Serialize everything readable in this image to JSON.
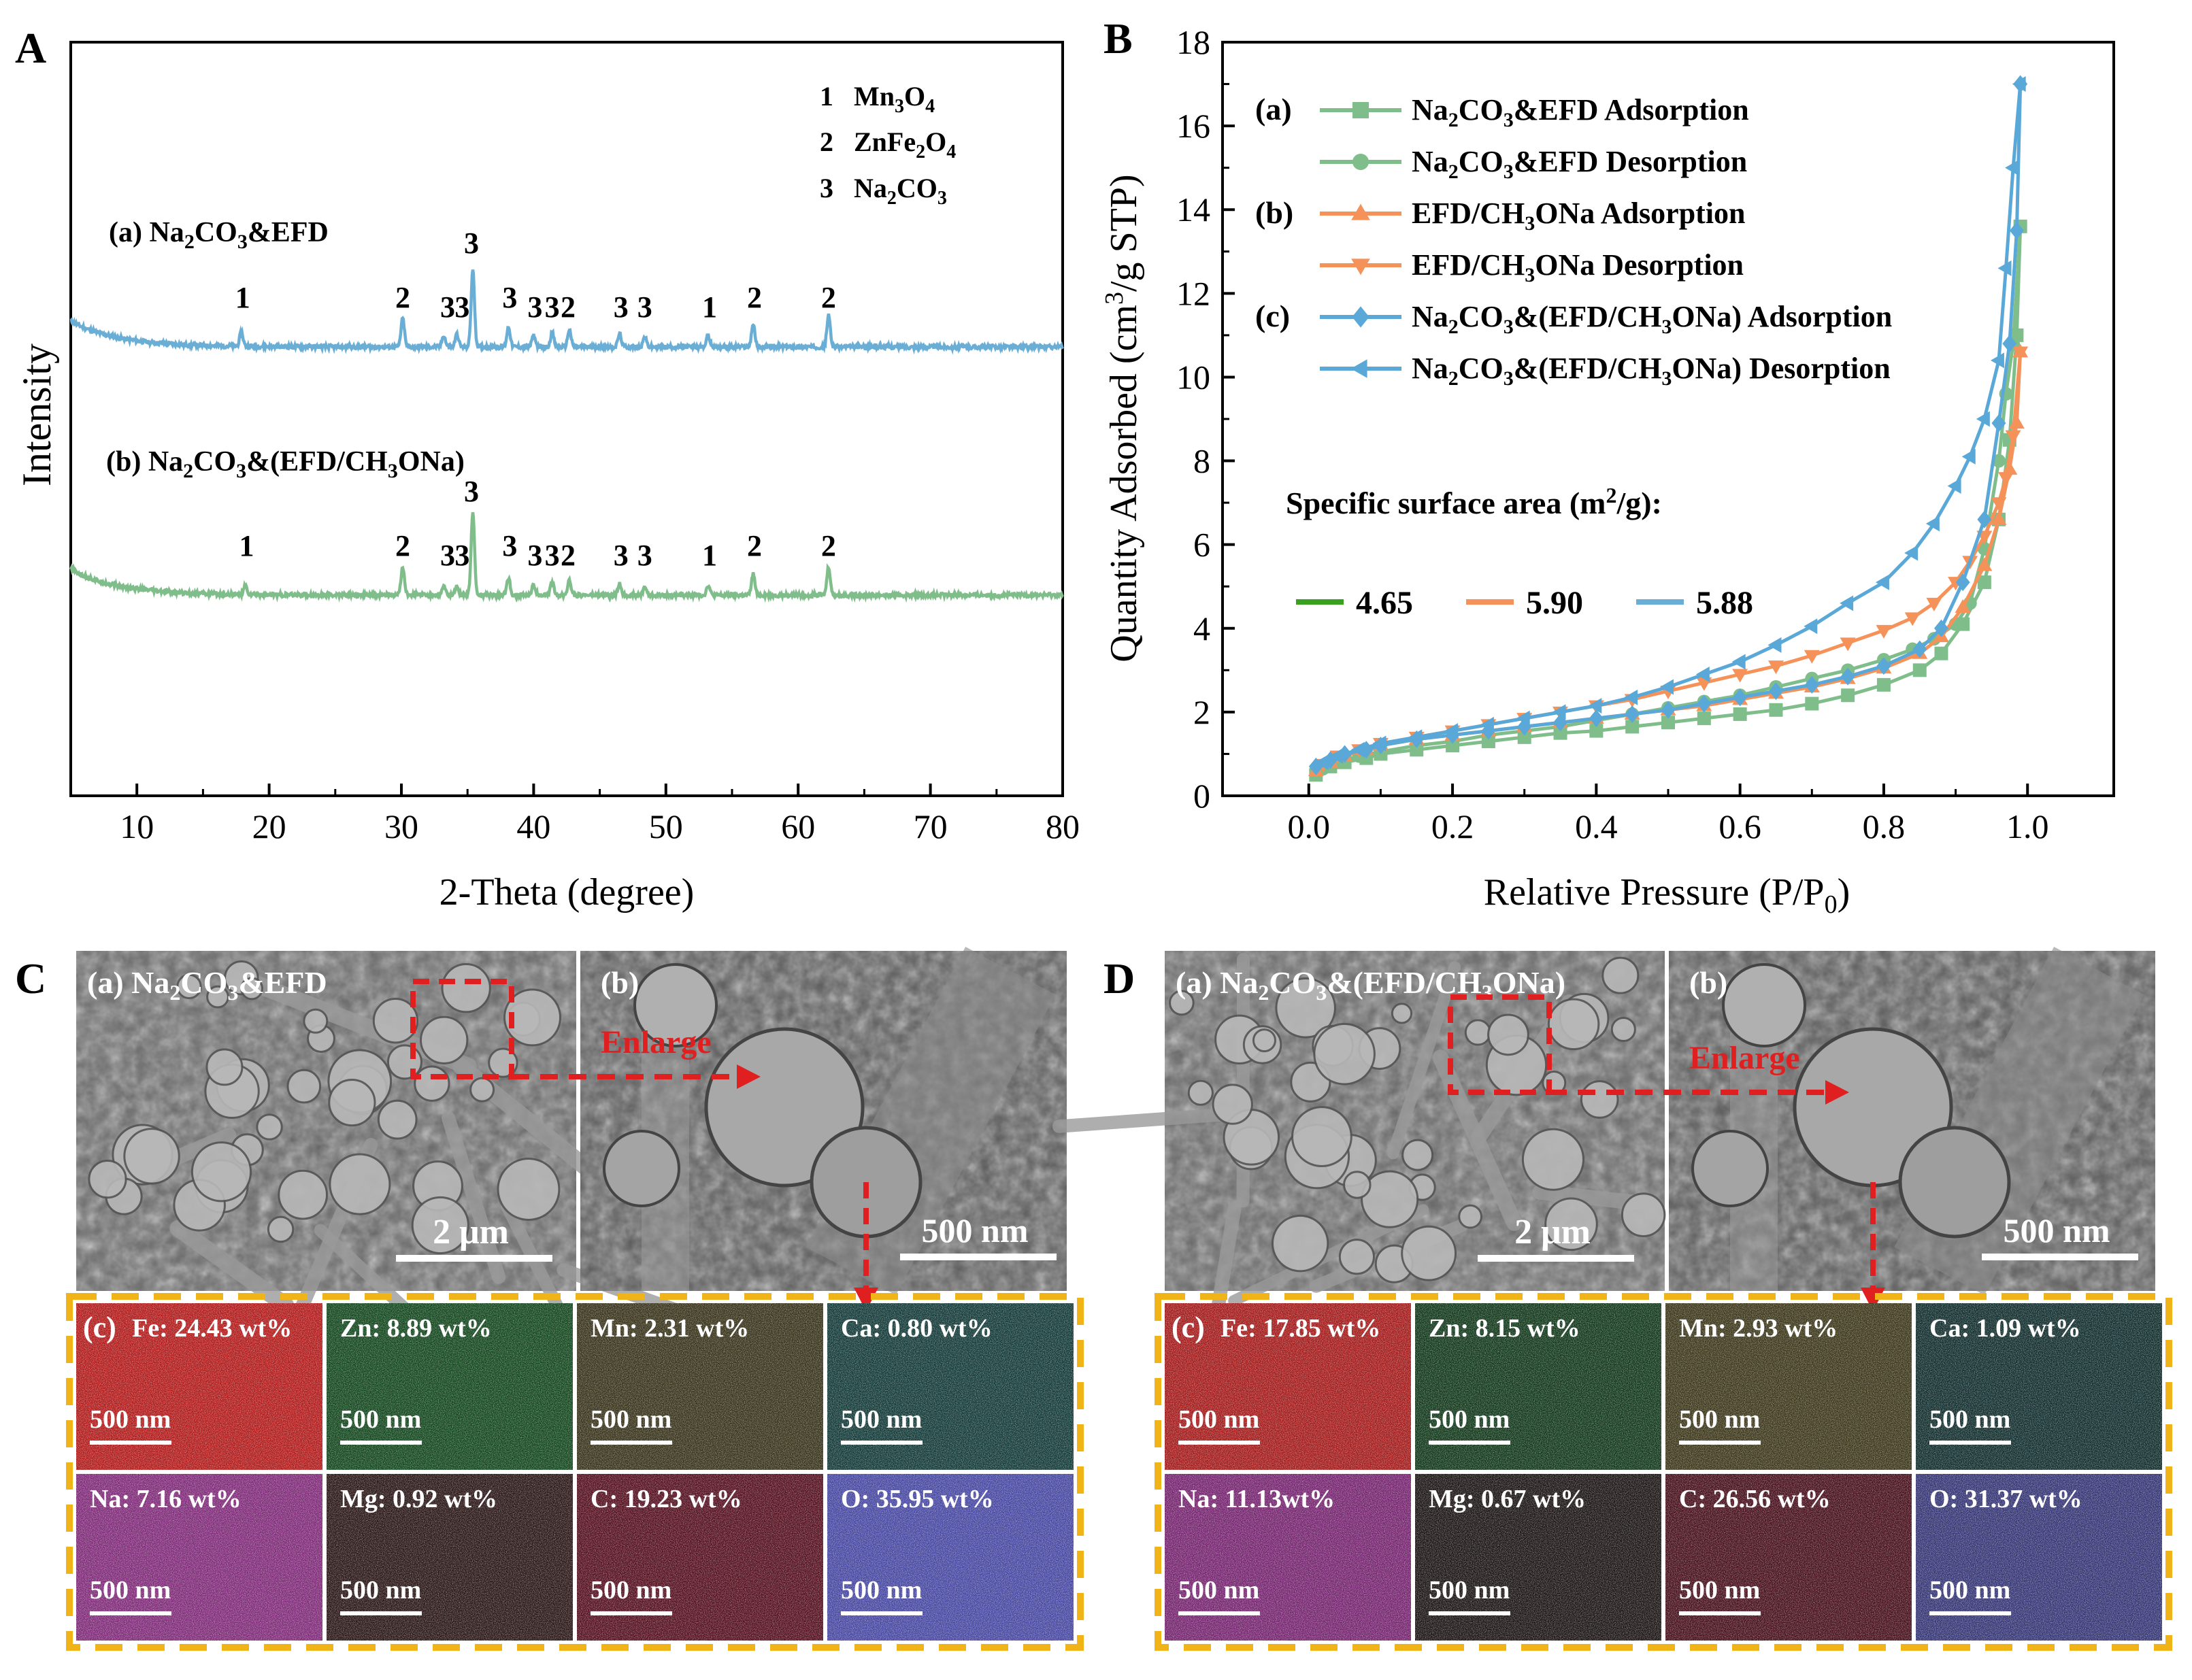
{
  "panel_labels": {
    "A": "A",
    "B": "B",
    "C": "C",
    "D": "D"
  },
  "chart_data": [
    {
      "id": "A",
      "type": "line",
      "title": "",
      "xlabel": "2-Theta (degree)",
      "ylabel": "Intensity",
      "xlim": [
        5,
        80
      ],
      "xticks": [
        10,
        20,
        30,
        40,
        50,
        60,
        70,
        80
      ],
      "legend": [
        {
          "num": "1",
          "base": "Mn",
          "sub1": "3",
          "mid": "O",
          "sub2": "4"
        },
        {
          "num": "2",
          "base": "ZnFe",
          "sub1": "2",
          "mid": "O",
          "sub2": "4"
        },
        {
          "num": "3",
          "base": "Na",
          "sub1": "2",
          "mid": "CO",
          "sub2": "3"
        }
      ],
      "series": [
        {
          "name": "(a) Na2CO3&EFD",
          "label_pre": "(a) Na",
          "label_sub": "2",
          "label_mid": "CO",
          "label_sub2": "3",
          "label_post": "&EFD",
          "color": "#6aaed6",
          "baseline": 0.0,
          "peaks": [
            [
              17.9,
              0.5
            ],
            [
              30.1,
              1.0
            ],
            [
              33.2,
              0.4
            ],
            [
              34.2,
              0.45
            ],
            [
              35.4,
              2.7
            ],
            [
              38.1,
              0.7
            ],
            [
              40.0,
              0.4
            ],
            [
              41.4,
              0.5
            ],
            [
              42.7,
              0.6
            ],
            [
              46.5,
              0.45
            ],
            [
              48.4,
              0.35
            ],
            [
              53.2,
              0.4
            ],
            [
              56.6,
              0.8
            ],
            [
              62.3,
              1.1
            ]
          ],
          "peak_labels": [
            {
              "x": 18.0,
              "text": "1",
              "row": "low"
            },
            {
              "x": 30.1,
              "text": "2",
              "row": "low"
            },
            {
              "x": 33.5,
              "text": "3",
              "row": "lowest"
            },
            {
              "x": 34.6,
              "text": "3",
              "row": "lowest"
            },
            {
              "x": 35.3,
              "text": "3",
              "row": "top"
            },
            {
              "x": 38.2,
              "text": "3",
              "row": "low"
            },
            {
              "x": 40.1,
              "text": "3",
              "row": "lowest"
            },
            {
              "x": 41.4,
              "text": "3",
              "row": "lowest"
            },
            {
              "x": 42.6,
              "text": "2",
              "row": "lowest"
            },
            {
              "x": 46.6,
              "text": "3",
              "row": "lowest"
            },
            {
              "x": 48.4,
              "text": "3",
              "row": "lowest"
            },
            {
              "x": 53.3,
              "text": "1",
              "row": "lowest"
            },
            {
              "x": 56.7,
              "text": "2",
              "row": "low"
            },
            {
              "x": 62.3,
              "text": "2",
              "row": "low"
            }
          ]
        },
        {
          "name": "(b) Na2CO3&(EFD/CH3ONa)",
          "label_pre": "(b) Na",
          "label_sub": "2",
          "label_mid": "CO",
          "label_sub2": "3",
          "label_post": "&(EFD/CH",
          "label_sub3": "3",
          "label_post2": "ONa)",
          "color": "#7fbe8a",
          "baseline": 0.0,
          "peaks": [
            [
              18.2,
              0.3
            ],
            [
              30.1,
              1.0
            ],
            [
              33.2,
              0.3
            ],
            [
              34.2,
              0.35
            ],
            [
              35.4,
              2.9
            ],
            [
              38.1,
              0.6
            ],
            [
              40.0,
              0.35
            ],
            [
              41.4,
              0.45
            ],
            [
              42.7,
              0.55
            ],
            [
              46.5,
              0.4
            ],
            [
              48.4,
              0.3
            ],
            [
              53.2,
              0.35
            ],
            [
              56.6,
              0.75
            ],
            [
              62.3,
              1.0
            ]
          ],
          "peak_labels": [
            {
              "x": 18.3,
              "text": "1",
              "row": "low"
            },
            {
              "x": 30.1,
              "text": "2",
              "row": "low"
            },
            {
              "x": 33.5,
              "text": "3",
              "row": "lowest"
            },
            {
              "x": 34.6,
              "text": "3",
              "row": "lowest"
            },
            {
              "x": 35.3,
              "text": "3",
              "row": "top"
            },
            {
              "x": 38.2,
              "text": "3",
              "row": "low"
            },
            {
              "x": 40.1,
              "text": "3",
              "row": "lowest"
            },
            {
              "x": 41.4,
              "text": "3",
              "row": "lowest"
            },
            {
              "x": 42.6,
              "text": "2",
              "row": "lowest"
            },
            {
              "x": 46.6,
              "text": "3",
              "row": "lowest"
            },
            {
              "x": 48.4,
              "text": "3",
              "row": "lowest"
            },
            {
              "x": 53.3,
              "text": "1",
              "row": "lowest"
            },
            {
              "x": 56.7,
              "text": "2",
              "row": "low"
            },
            {
              "x": 62.3,
              "text": "2",
              "row": "low"
            }
          ]
        }
      ]
    },
    {
      "id": "B",
      "type": "line",
      "title": "",
      "xlabel": "Relative Pressure (P/P0)",
      "ylabel": "Quantity Adsorbed (cm3/g STP)",
      "xlim": [
        -0.12,
        1.12
      ],
      "ylim": [
        0,
        18
      ],
      "xticks": [
        0.0,
        0.2,
        0.4,
        0.6,
        0.8,
        1.0
      ],
      "yticks": [
        0,
        2,
        4,
        6,
        8,
        10,
        12,
        14,
        16,
        18
      ],
      "series": [
        {
          "group": "(a)",
          "name": "Na2CO3&EFD Adsorption",
          "color": "#7fbe8a",
          "marker": "square",
          "x": [
            0.01,
            0.03,
            0.05,
            0.08,
            0.1,
            0.15,
            0.2,
            0.25,
            0.3,
            0.35,
            0.4,
            0.45,
            0.5,
            0.55,
            0.6,
            0.65,
            0.7,
            0.75,
            0.8,
            0.85,
            0.88,
            0.91,
            0.94,
            0.96,
            0.975,
            0.985,
            0.99
          ],
          "y": [
            0.5,
            0.7,
            0.8,
            0.9,
            1.0,
            1.1,
            1.2,
            1.3,
            1.4,
            1.5,
            1.55,
            1.65,
            1.75,
            1.85,
            1.95,
            2.05,
            2.2,
            2.4,
            2.65,
            3.0,
            3.4,
            4.1,
            5.1,
            6.6,
            8.5,
            11.0,
            13.6
          ]
        },
        {
          "group": "",
          "name": "Na2CO3&EFD Desorption",
          "color": "#7fbe8a",
          "marker": "circle",
          "x": [
            0.99,
            0.98,
            0.97,
            0.96,
            0.94,
            0.92,
            0.9,
            0.87,
            0.84,
            0.8,
            0.75,
            0.7,
            0.65,
            0.6,
            0.55,
            0.5,
            0.45,
            0.4,
            0.35,
            0.3,
            0.25,
            0.2,
            0.15,
            0.1,
            0.07,
            0.04,
            0.02
          ],
          "y": [
            13.6,
            10.8,
            9.6,
            8.0,
            5.9,
            4.6,
            4.1,
            3.75,
            3.5,
            3.25,
            3.0,
            2.8,
            2.6,
            2.4,
            2.25,
            2.1,
            1.95,
            1.8,
            1.65,
            1.55,
            1.45,
            1.3,
            1.2,
            1.05,
            0.95,
            0.8,
            0.65
          ]
        },
        {
          "group": "(b)",
          "name": "EFD/CH3ONa Adsorption",
          "color": "#f5925a",
          "marker": "triangle-up",
          "x": [
            0.01,
            0.03,
            0.05,
            0.08,
            0.1,
            0.15,
            0.2,
            0.25,
            0.3,
            0.35,
            0.4,
            0.45,
            0.5,
            0.55,
            0.6,
            0.65,
            0.7,
            0.75,
            0.8,
            0.85,
            0.88,
            0.91,
            0.94,
            0.96,
            0.975,
            0.985,
            0.99
          ],
          "y": [
            0.6,
            0.8,
            0.95,
            1.1,
            1.2,
            1.35,
            1.45,
            1.55,
            1.65,
            1.75,
            1.85,
            1.95,
            2.05,
            2.15,
            2.3,
            2.45,
            2.6,
            2.8,
            3.05,
            3.4,
            3.8,
            4.5,
            5.5,
            6.6,
            7.8,
            8.9,
            10.6
          ]
        },
        {
          "group": "",
          "name": "EFD/CH3ONa Desorption",
          "color": "#f5925a",
          "marker": "triangle-down",
          "x": [
            0.99,
            0.98,
            0.97,
            0.96,
            0.94,
            0.92,
            0.9,
            0.87,
            0.84,
            0.8,
            0.75,
            0.7,
            0.65,
            0.6,
            0.55,
            0.5,
            0.45,
            0.4,
            0.35,
            0.3,
            0.25,
            0.2,
            0.15,
            0.1,
            0.07,
            0.04,
            0.02
          ],
          "y": [
            10.6,
            8.6,
            7.6,
            7.0,
            6.2,
            5.6,
            5.1,
            4.6,
            4.25,
            3.95,
            3.65,
            3.35,
            3.1,
            2.9,
            2.7,
            2.5,
            2.3,
            2.15,
            2.0,
            1.85,
            1.7,
            1.55,
            1.4,
            1.25,
            1.1,
            0.95,
            0.75
          ]
        },
        {
          "group": "(c)",
          "name": "Na2CO3&(EFD/CH3ONa) Adsorption",
          "color": "#5aa8d8",
          "marker": "diamond",
          "x": [
            0.01,
            0.03,
            0.05,
            0.08,
            0.1,
            0.15,
            0.2,
            0.25,
            0.3,
            0.35,
            0.4,
            0.45,
            0.5,
            0.55,
            0.6,
            0.65,
            0.7,
            0.75,
            0.8,
            0.85,
            0.88,
            0.91,
            0.94,
            0.96,
            0.975,
            0.985,
            0.99
          ],
          "y": [
            0.7,
            0.85,
            1.0,
            1.1,
            1.2,
            1.35,
            1.45,
            1.55,
            1.65,
            1.75,
            1.85,
            1.95,
            2.05,
            2.2,
            2.35,
            2.5,
            2.65,
            2.85,
            3.1,
            3.5,
            4.0,
            5.1,
            6.6,
            8.9,
            10.8,
            13.5,
            17.0
          ]
        },
        {
          "group": "",
          "name": "Na2CO3&(EFD/CH3ONa) Desorption",
          "color": "#5aa8d8",
          "marker": "triangle-left",
          "x": [
            0.99,
            0.98,
            0.97,
            0.96,
            0.94,
            0.92,
            0.9,
            0.87,
            0.84,
            0.8,
            0.75,
            0.7,
            0.65,
            0.6,
            0.55,
            0.5,
            0.45,
            0.4,
            0.35,
            0.3,
            0.25,
            0.2,
            0.15,
            0.1,
            0.07,
            0.04,
            0.02
          ],
          "y": [
            17.0,
            15.0,
            12.6,
            10.4,
            9.0,
            8.1,
            7.4,
            6.5,
            5.8,
            5.1,
            4.6,
            4.05,
            3.6,
            3.2,
            2.9,
            2.6,
            2.35,
            2.15,
            2.0,
            1.85,
            1.7,
            1.55,
            1.4,
            1.25,
            1.1,
            0.95,
            0.8
          ]
        }
      ],
      "legend_rows": [
        {
          "group": "(a)",
          "pre": "Na",
          "sub": "2",
          "mid": "CO",
          "sub2": "3",
          "post": "&EFD Adsorption"
        },
        {
          "group": "",
          "pre": "Na",
          "sub": "2",
          "mid": "CO",
          "sub2": "3",
          "post": "&EFD Desorption"
        },
        {
          "group": "(b)",
          "pre": "EFD/CH",
          "sub": "3",
          "mid": "ONa Adsorption",
          "sub2": "",
          "post": ""
        },
        {
          "group": "",
          "pre": "EFD/CH",
          "sub": "3",
          "mid": "ONa Desorption",
          "sub2": "",
          "post": ""
        },
        {
          "group": "(c)",
          "pre": "Na",
          "sub": "2",
          "mid": "CO",
          "sub2": "3",
          "post": "&(EFD/CH",
          "sub3": "3",
          "post2": "ONa) Adsorption"
        },
        {
          "group": "",
          "pre": "Na",
          "sub": "2",
          "mid": "CO",
          "sub2": "3",
          "post": "&(EFD/CH",
          "sub3": "3",
          "post2": "ONa) Desorption"
        }
      ],
      "surface_area": {
        "title_pre": "Specific surface area (m",
        "title_sup": "2",
        "title_post": "/g):",
        "items": [
          {
            "value": "4.65",
            "color": "#3aa020"
          },
          {
            "value": "5.90",
            "color": "#f5925a"
          },
          {
            "value": "5.88",
            "color": "#6aaed6"
          }
        ]
      }
    }
  ],
  "panel_C": {
    "sem_a_pre": "(a) Na",
    "sem_a_sub": "2",
    "sem_a_mid": "CO",
    "sem_a_sub2": "3",
    "sem_a_post": "&EFD",
    "sem_b": "(b)",
    "enlarge": "Enlarge",
    "scale_a": "2 μm",
    "scale_b": "500 nm",
    "map_tag": "(c)",
    "maps": [
      {
        "label": "Fe: 24.43 wt%",
        "scale": "500 nm",
        "color": "#c21818"
      },
      {
        "label": "Zn: 8.89 wt%",
        "scale": "500 nm",
        "color": "#0f4a1c"
      },
      {
        "label": "Mn: 2.31 wt%",
        "scale": "500 nm",
        "color": "#3a3418"
      },
      {
        "label": "Ca: 0.80 wt%",
        "scale": "500 nm",
        "color": "#103c3a"
      },
      {
        "label": "Na: 7.16 wt%",
        "scale": "500 nm",
        "color": "#8a2a82"
      },
      {
        "label": "Mg: 0.92 wt%",
        "scale": "500 nm",
        "color": "#2a1414"
      },
      {
        "label": "C: 19.23 wt%",
        "scale": "500 nm",
        "color": "#5a0c1e"
      },
      {
        "label": "O: 35.95 wt%",
        "scale": "500 nm",
        "color": "#4a4ab0"
      }
    ]
  },
  "panel_D": {
    "sem_a_pre": "(a) Na",
    "sem_a_sub": "2",
    "sem_a_mid": "CO",
    "sem_a_sub2": "3",
    "sem_a_post": "&(EFD/CH",
    "sem_a_sub3": "3",
    "sem_a_post2": "ONa)",
    "sem_b": "(b)",
    "enlarge": "Enlarge",
    "scale_a": "2 μm",
    "scale_b": "500 nm",
    "map_tag": "(c)",
    "maps": [
      {
        "label": "Fe: 17.85 wt%",
        "scale": "500 nm",
        "color": "#b21818"
      },
      {
        "label": "Zn: 8.15 wt%",
        "scale": "500 nm",
        "color": "#0e3a18"
      },
      {
        "label": "Mn: 2.93 wt%",
        "scale": "500 nm",
        "color": "#3e3818"
      },
      {
        "label": "Ca: 1.09 wt%",
        "scale": "500 nm",
        "color": "#0e2e2e"
      },
      {
        "label": "Na: 11.13wt%",
        "scale": "500 nm",
        "color": "#7e2478"
      },
      {
        "label": "Mg: 0.67 wt%",
        "scale": "500 nm",
        "color": "#1a1212"
      },
      {
        "label": "C: 26.56 wt%",
        "scale": "500 nm",
        "color": "#4a0c1a"
      },
      {
        "label": "O: 31.37 wt%",
        "scale": "500 nm",
        "color": "#36367e"
      }
    ]
  }
}
